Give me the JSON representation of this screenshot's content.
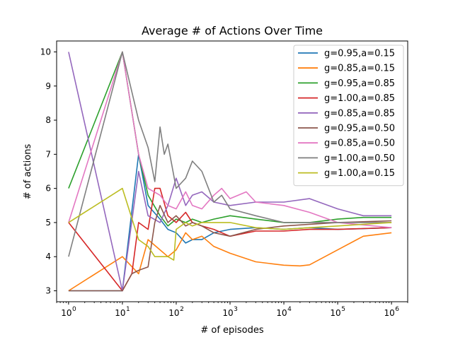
{
  "chart_data": {
    "type": "line",
    "title": "Average # of Actions Over Time",
    "xlabel": "# of episodes",
    "ylabel": "# of actions",
    "xscale": "log",
    "xlim": [
      0.6,
      2000000
    ],
    "ylim": [
      2.68,
      10.32
    ],
    "x_ticks": [
      {
        "value": 1,
        "label": "10",
        "exp": "0"
      },
      {
        "value": 10,
        "label": "10",
        "exp": "1"
      },
      {
        "value": 100,
        "label": "10",
        "exp": "2"
      },
      {
        "value": 1000,
        "label": "10",
        "exp": "3"
      },
      {
        "value": 10000,
        "label": "10",
        "exp": "4"
      },
      {
        "value": 100000,
        "label": "10",
        "exp": "5"
      },
      {
        "value": 1000000,
        "label": "10",
        "exp": "6"
      }
    ],
    "y_ticks": [
      {
        "value": 3,
        "label": "3"
      },
      {
        "value": 4,
        "label": "4"
      },
      {
        "value": 5,
        "label": "5"
      },
      {
        "value": 6,
        "label": "6"
      },
      {
        "value": 7,
        "label": "7"
      },
      {
        "value": 8,
        "label": "8"
      },
      {
        "value": 9,
        "label": "9"
      },
      {
        "value": 10,
        "label": "10"
      }
    ],
    "grid": false,
    "legend_position": "top-right",
    "series": [
      {
        "name": "g=0.95,a=0.15",
        "color": "#1f77b4",
        "points": [
          [
            1,
            3
          ],
          [
            10,
            3
          ],
          [
            20,
            7
          ],
          [
            30,
            5.5
          ],
          [
            50,
            5.1
          ],
          [
            70,
            4.8
          ],
          [
            100,
            4.7
          ],
          [
            150,
            4.4
          ],
          [
            200,
            4.5
          ],
          [
            300,
            4.5
          ],
          [
            500,
            4.7
          ],
          [
            1000,
            4.8
          ],
          [
            3000,
            4.85
          ],
          [
            10000,
            4.8
          ],
          [
            30000,
            4.85
          ],
          [
            100000,
            4.8
          ],
          [
            300000,
            4.82
          ],
          [
            1000000,
            4.85
          ]
        ]
      },
      {
        "name": "g=0.85,a=0.15",
        "color": "#ff7f0e",
        "points": [
          [
            1,
            3
          ],
          [
            10,
            4
          ],
          [
            20,
            3.5
          ],
          [
            30,
            4.5
          ],
          [
            50,
            4.2
          ],
          [
            70,
            4.0
          ],
          [
            100,
            4.2
          ],
          [
            150,
            4.7
          ],
          [
            200,
            4.5
          ],
          [
            300,
            4.6
          ],
          [
            500,
            4.3
          ],
          [
            1000,
            4.1
          ],
          [
            3000,
            3.85
          ],
          [
            10000,
            3.75
          ],
          [
            20000,
            3.73
          ],
          [
            30000,
            3.76
          ],
          [
            100000,
            4.2
          ],
          [
            300000,
            4.6
          ],
          [
            1000000,
            4.7
          ]
        ]
      },
      {
        "name": "g=0.95,a=0.85",
        "color": "#2ca02c",
        "points": [
          [
            1,
            6
          ],
          [
            10,
            10
          ],
          [
            20,
            7
          ],
          [
            30,
            5.8
          ],
          [
            50,
            5.2
          ],
          [
            70,
            4.9
          ],
          [
            100,
            5.1
          ],
          [
            150,
            5.0
          ],
          [
            200,
            5.1
          ],
          [
            300,
            5.0
          ],
          [
            500,
            5.1
          ],
          [
            1000,
            5.2
          ],
          [
            3000,
            5.1
          ],
          [
            10000,
            5.0
          ],
          [
            30000,
            5.0
          ],
          [
            100000,
            5.1
          ],
          [
            300000,
            5.15
          ],
          [
            1000000,
            5.15
          ]
        ]
      },
      {
        "name": "g=1.00,a=0.85",
        "color": "#d62728",
        "points": [
          [
            1,
            5
          ],
          [
            10,
            3
          ],
          [
            15,
            3.5
          ],
          [
            20,
            5.0
          ],
          [
            30,
            4.8
          ],
          [
            40,
            6.0
          ],
          [
            50,
            6.0
          ],
          [
            70,
            5.2
          ],
          [
            100,
            5.0
          ],
          [
            150,
            5.3
          ],
          [
            200,
            5.0
          ],
          [
            300,
            4.9
          ],
          [
            500,
            4.8
          ],
          [
            1000,
            4.6
          ],
          [
            3000,
            4.75
          ],
          [
            10000,
            4.75
          ],
          [
            30000,
            4.8
          ],
          [
            100000,
            4.8
          ],
          [
            1000000,
            4.85
          ]
        ]
      },
      {
        "name": "g=0.85,a=0.85",
        "color": "#9467bd",
        "points": [
          [
            1,
            10
          ],
          [
            10,
            3
          ],
          [
            20,
            6.5
          ],
          [
            30,
            5.2
          ],
          [
            50,
            5.0
          ],
          [
            70,
            5.5
          ],
          [
            100,
            6.3
          ],
          [
            150,
            5.5
          ],
          [
            200,
            5.8
          ],
          [
            300,
            5.9
          ],
          [
            500,
            5.6
          ],
          [
            1000,
            5.5
          ],
          [
            3000,
            5.6
          ],
          [
            10000,
            5.6
          ],
          [
            30000,
            5.7
          ],
          [
            100000,
            5.4
          ],
          [
            300000,
            5.2
          ],
          [
            1000000,
            5.2
          ]
        ]
      },
      {
        "name": "g=0.95,a=0.50",
        "color": "#8c564b",
        "points": [
          [
            1,
            3
          ],
          [
            10,
            3
          ],
          [
            15,
            3.5
          ],
          [
            20,
            3.6
          ],
          [
            30,
            3.7
          ],
          [
            40,
            5.0
          ],
          [
            50,
            5.5
          ],
          [
            70,
            5.0
          ],
          [
            100,
            5.2
          ],
          [
            150,
            4.9
          ],
          [
            200,
            5.0
          ],
          [
            300,
            4.9
          ],
          [
            500,
            4.7
          ],
          [
            1000,
            4.6
          ],
          [
            3000,
            4.8
          ],
          [
            10000,
            4.9
          ],
          [
            30000,
            4.95
          ],
          [
            100000,
            5.0
          ],
          [
            1000000,
            5.05
          ]
        ]
      },
      {
        "name": "g=0.85,a=0.50",
        "color": "#e377c2",
        "points": [
          [
            1,
            5
          ],
          [
            10,
            10
          ],
          [
            20,
            7.0
          ],
          [
            30,
            6.0
          ],
          [
            50,
            5.8
          ],
          [
            70,
            5.5
          ],
          [
            100,
            5.4
          ],
          [
            150,
            5.9
          ],
          [
            200,
            5.5
          ],
          [
            300,
            5.4
          ],
          [
            500,
            5.8
          ],
          [
            700,
            6.0
          ],
          [
            1000,
            5.7
          ],
          [
            2000,
            5.9
          ],
          [
            3000,
            5.6
          ],
          [
            10000,
            5.5
          ],
          [
            30000,
            5.3
          ],
          [
            100000,
            5.0
          ],
          [
            1000000,
            4.85
          ]
        ]
      },
      {
        "name": "g=1.00,a=0.50",
        "color": "#7f7f7f",
        "points": [
          [
            1,
            4
          ],
          [
            10,
            10
          ],
          [
            20,
            8.0
          ],
          [
            30,
            7.2
          ],
          [
            40,
            6.2
          ],
          [
            50,
            7.8
          ],
          [
            60,
            7.0
          ],
          [
            70,
            7.3
          ],
          [
            100,
            6.0
          ],
          [
            150,
            6.3
          ],
          [
            200,
            6.8
          ],
          [
            300,
            6.5
          ],
          [
            500,
            5.6
          ],
          [
            700,
            5.8
          ],
          [
            1000,
            5.4
          ],
          [
            3000,
            5.2
          ],
          [
            10000,
            5.0
          ],
          [
            30000,
            5.0
          ],
          [
            100000,
            5.0
          ],
          [
            1000000,
            5.0
          ]
        ]
      },
      {
        "name": "g=1.00,a=0.15",
        "color": "#bcbd22",
        "points": [
          [
            1,
            5
          ],
          [
            10,
            6
          ],
          [
            20,
            4.5
          ],
          [
            30,
            4.3
          ],
          [
            40,
            4.0
          ],
          [
            70,
            4.0
          ],
          [
            90,
            3.9
          ],
          [
            100,
            4.8
          ],
          [
            150,
            5.0
          ],
          [
            200,
            4.9
          ],
          [
            300,
            5.0
          ],
          [
            500,
            5.0
          ],
          [
            1000,
            5.0
          ],
          [
            3000,
            4.85
          ],
          [
            10000,
            4.8
          ],
          [
            30000,
            4.85
          ],
          [
            100000,
            4.9
          ],
          [
            300000,
            4.95
          ],
          [
            1000000,
            5.0
          ]
        ]
      }
    ]
  }
}
